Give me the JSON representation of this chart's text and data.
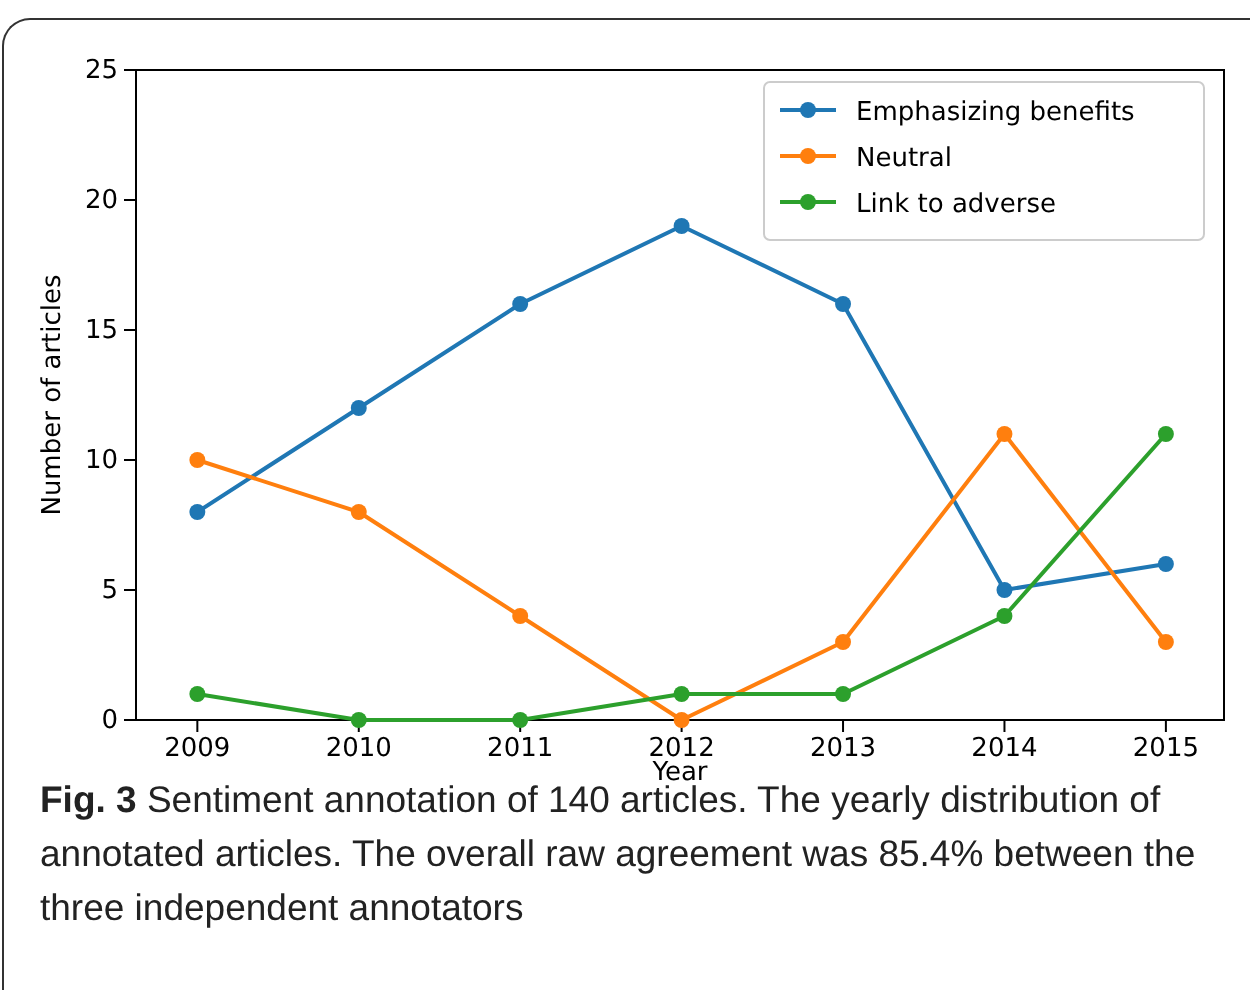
{
  "chart_data": {
    "type": "line",
    "xlabel": "Year",
    "ylabel": "Number of articles",
    "x": [
      2009,
      2010,
      2011,
      2012,
      2013,
      2014,
      2015
    ],
    "xlim": [
      2008.62,
      2015.36
    ],
    "xticks": [
      2009,
      2010,
      2011,
      2012,
      2013,
      2014,
      2015
    ],
    "ylim": [
      0,
      25
    ],
    "yticks": [
      0,
      5,
      10,
      15,
      20,
      25
    ],
    "marker": "circle",
    "legend": "top right",
    "grid": false,
    "series": [
      {
        "name": "Emphasizing benefits",
        "color": "#1f77b4",
        "values": [
          8,
          12,
          16,
          19,
          16,
          5,
          6
        ]
      },
      {
        "name": "Neutral",
        "color": "#ff7f0e",
        "values": [
          10,
          8,
          4,
          0,
          3,
          11,
          3
        ]
      },
      {
        "name": "Link to adverse",
        "color": "#2ca02c",
        "values": [
          1,
          0,
          0,
          1,
          1,
          4,
          11
        ]
      }
    ],
    "annotations": [
      "Fig. 3",
      "Sentiment annotation of 140 articles. The yearly distribution of annotated articles. The overall raw agreement was 85.4% between the three independent annotators"
    ]
  }
}
